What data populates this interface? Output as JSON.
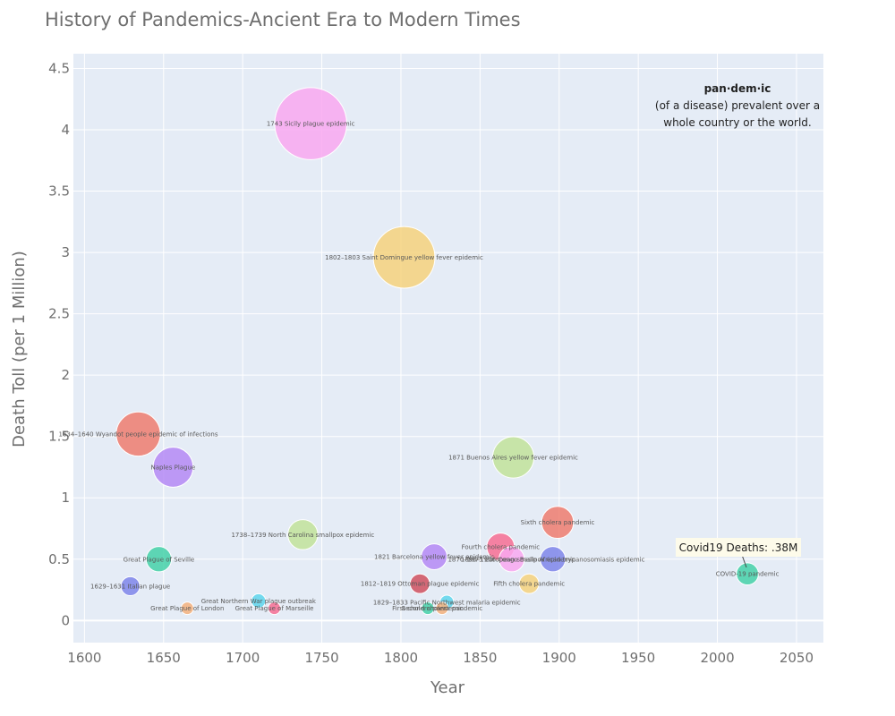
{
  "colors": {
    "plot_bg": "#e5ecf6",
    "grid": "#ffffff",
    "annotation_bg": "#fdfbea"
  },
  "annotation_note": {
    "heading": "pan·dem·ic",
    "line1": "(of a disease) prevalent over a",
    "line2": "whole country or the world."
  },
  "covid_annotation": {
    "text": "Covid19 Deaths: .38M"
  },
  "chart_data": {
    "type": "scatter",
    "title": "History of Pandemics-Ancient Era to Modern Times",
    "xlabel": "Year",
    "ylabel": "Death Toll (per 1 Million)",
    "xlim": [
      1593,
      2067
    ],
    "ylim": [
      -0.18,
      4.62
    ],
    "xticks": [
      1600,
      1650,
      1700,
      1750,
      1800,
      1850,
      1900,
      1950,
      2000,
      2050
    ],
    "yticks": [
      0,
      0.5,
      1,
      1.5,
      2,
      2.5,
      3,
      3.5,
      4,
      4.5
    ],
    "ytick_labels": [
      "0",
      "0.5",
      "1",
      "1.5",
      "2",
      "2.5",
      "3",
      "3.5",
      "4",
      "4.5"
    ],
    "grid": true,
    "points": [
      {
        "x": 1743,
        "y": 4.05,
        "label": "1743 Sicily plague epidemic",
        "color": "#f9a8f0"
      },
      {
        "x": 1802,
        "y": 2.96,
        "label": "1802–1803 Saint Domingue yellow fever epidemic",
        "color": "#f6d27c"
      },
      {
        "x": 1634,
        "y": 1.52,
        "label": "1634–1640 Wyandot people epidemic of infections",
        "color": "#ef7d6e"
      },
      {
        "x": 1656,
        "y": 1.25,
        "label": "Naples Plague",
        "color": "#b58af4"
      },
      {
        "x": 1871,
        "y": 1.33,
        "label": "1871 Buenos Aires yellow fever epidemic",
        "color": "#c2e39a"
      },
      {
        "x": 1899,
        "y": 0.8,
        "label": "Sixth cholera pandemic",
        "color": "#ef7d6e"
      },
      {
        "x": 1738,
        "y": 0.7,
        "label": "1738–1739 North Carolina smallpox epidemic",
        "color": "#c2e39a"
      },
      {
        "x": 1647,
        "y": 0.5,
        "label": "Great Plague of Seville",
        "color": "#45d1a8"
      },
      {
        "x": 1629,
        "y": 0.28,
        "label": "1629–1631 Italian plague",
        "color": "#7f86ea"
      },
      {
        "x": 1821,
        "y": 0.52,
        "label": "1821 Barcelona yellow fever epidemic",
        "color": "#b58af4"
      },
      {
        "x": 1863,
        "y": 0.6,
        "label": "Fourth cholera pandemic",
        "color": "#f76f93"
      },
      {
        "x": 1870,
        "y": 0.5,
        "label": "1870–1875 European smallpox epidemic",
        "color": "#f9a8f0"
      },
      {
        "x": 1896,
        "y": 0.5,
        "label": "1896–1906 Congo Basin African trypanosomiasis epidemic",
        "color": "#7f86ea"
      },
      {
        "x": 1881,
        "y": 0.3,
        "label": "Fifth cholera pandemic",
        "color": "#f6d27c"
      },
      {
        "x": 1812,
        "y": 0.3,
        "label": "1812–1819 Ottoman plague epidemic",
        "color": "#d0515f"
      },
      {
        "x": 1829,
        "y": 0.15,
        "label": "1829–1833 Pacific Northwest malaria epidemic",
        "color": "#5fd6ec"
      },
      {
        "x": 1817,
        "y": 0.1,
        "label": "First cholera pandemic",
        "color": "#45d1a8"
      },
      {
        "x": 1826,
        "y": 0.1,
        "label": "Second cholera pandemic",
        "color": "#f5b27c"
      },
      {
        "x": 1710,
        "y": 0.16,
        "label": "Great Northern War plague outbreak",
        "color": "#5fd6ec"
      },
      {
        "x": 1665,
        "y": 0.1,
        "label": "Great Plague of London",
        "color": "#f5b27c"
      },
      {
        "x": 1720,
        "y": 0.1,
        "label": "Great Plague of Marseille",
        "color": "#f76f93"
      },
      {
        "x": 2019,
        "y": 0.38,
        "label": "COVID-19 pandemic",
        "color": "#45d1a8"
      }
    ]
  }
}
